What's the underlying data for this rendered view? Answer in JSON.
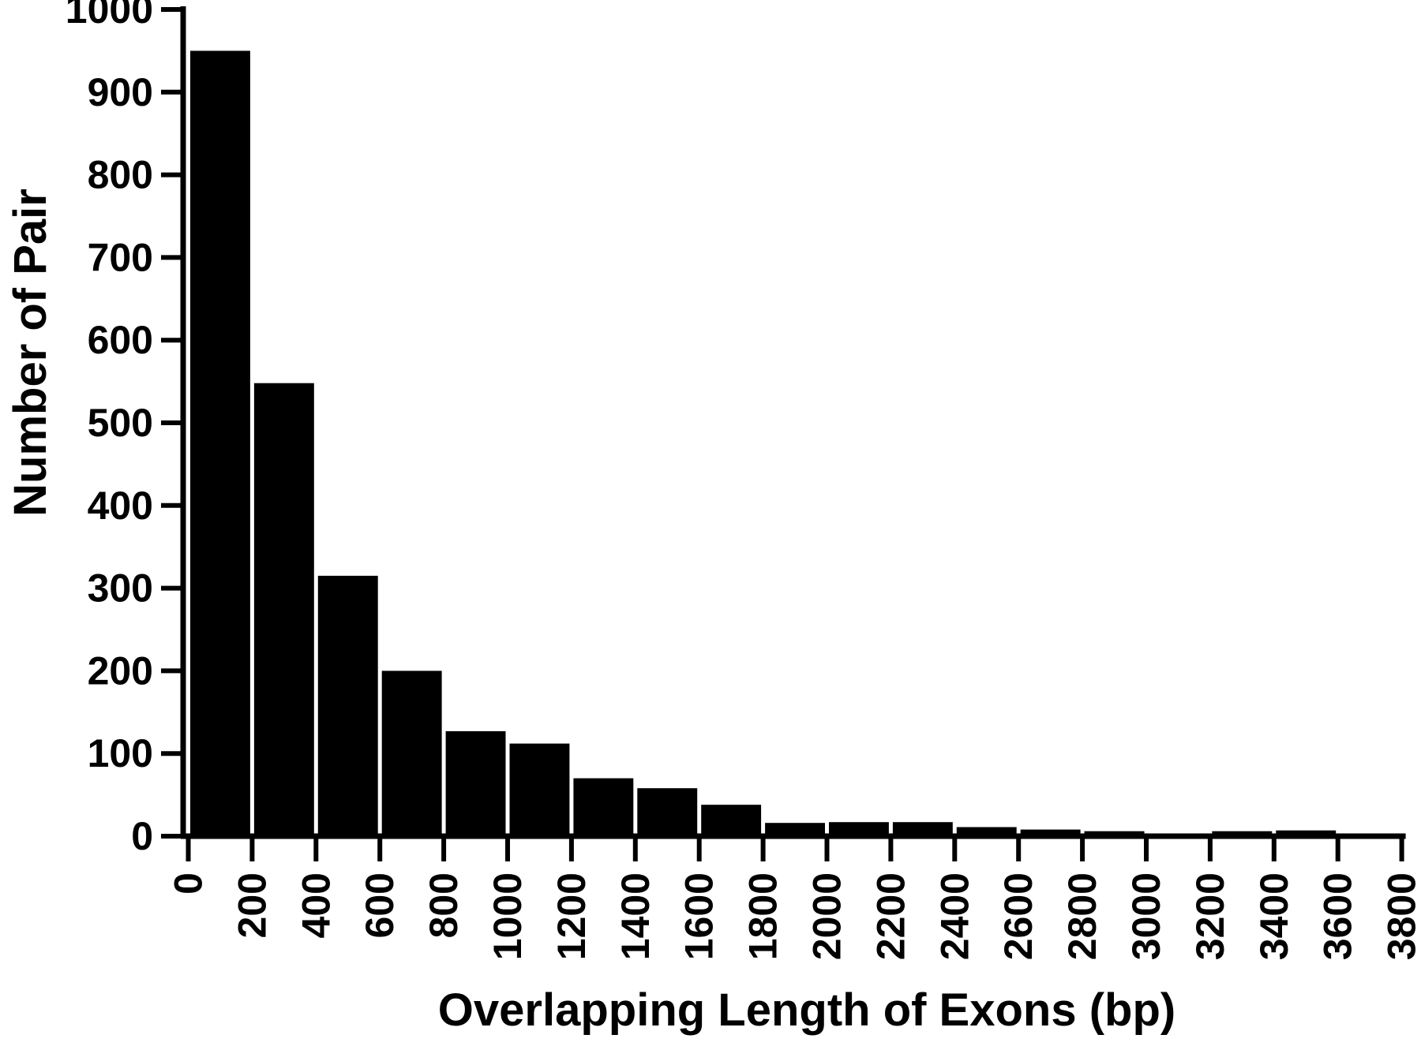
{
  "figure": {
    "background": "#ffffff",
    "ink_color": "#000000"
  },
  "chart_data": {
    "type": "bar",
    "title": "",
    "xlabel": "Overlapping Length of Exons (bp)",
    "ylabel": "Number of Pair",
    "bar_color": "#000000",
    "grid": false,
    "legend": null,
    "xlim": [
      0,
      3800
    ],
    "ylim": [
      0,
      1000
    ],
    "bin_width": 200,
    "bin_starts": [
      0,
      200,
      400,
      600,
      800,
      1000,
      1200,
      1400,
      1600,
      1800,
      2000,
      2200,
      2400,
      2600,
      2800,
      3000,
      3200,
      3400,
      3600
    ],
    "values": [
      950,
      548,
      315,
      200,
      127,
      112,
      70,
      58,
      38,
      16,
      17,
      17,
      11,
      8,
      6,
      2,
      6,
      7,
      2
    ],
    "x_tick_values": [
      0,
      200,
      400,
      600,
      800,
      1000,
      1200,
      1400,
      1600,
      1800,
      2000,
      2200,
      2400,
      2600,
      2800,
      3000,
      3200,
      3400,
      3600,
      3800
    ],
    "x_tick_labels": [
      "0",
      "200",
      "400",
      "600",
      "800",
      "1000",
      "1200",
      "1400",
      "1600",
      "1800",
      "2000",
      "2200",
      "2400",
      "2600",
      "2800",
      "3000",
      "3200",
      "3400",
      "3600",
      "3800"
    ],
    "y_tick_values": [
      0,
      100,
      200,
      300,
      400,
      500,
      600,
      700,
      800,
      900,
      1000
    ],
    "y_tick_labels": [
      "0",
      "100",
      "200",
      "300",
      "400",
      "500",
      "600",
      "700",
      "800",
      "900",
      "1000"
    ]
  }
}
